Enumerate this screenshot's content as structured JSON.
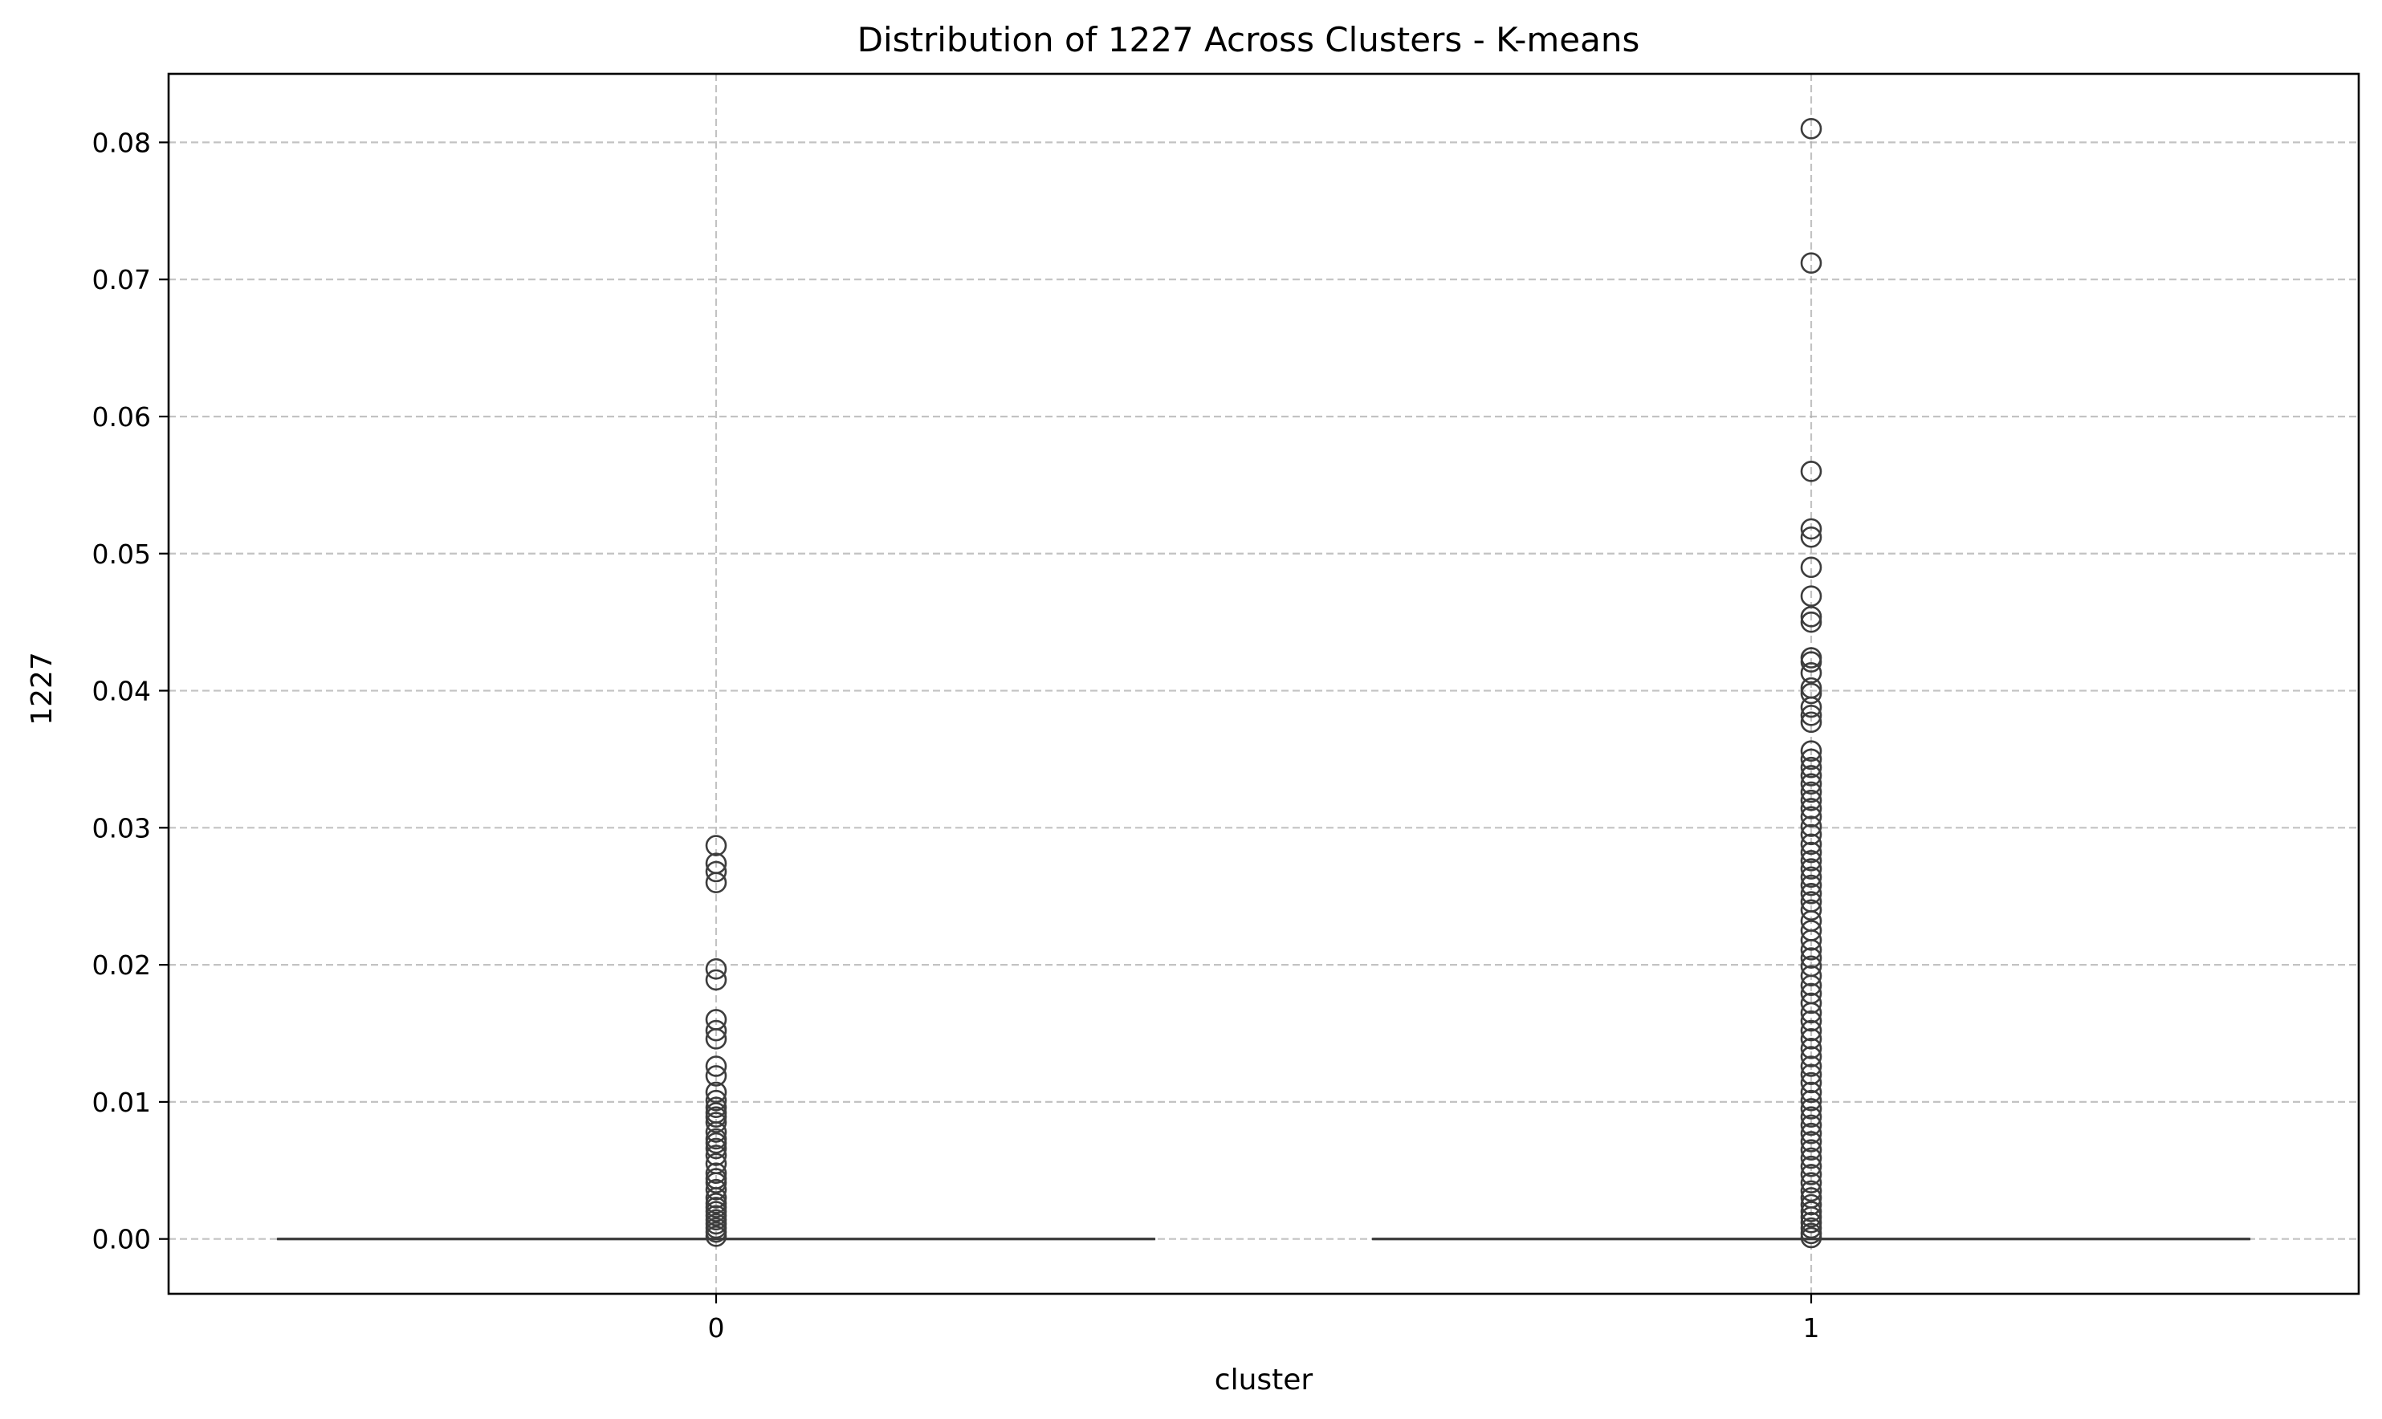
{
  "chart_data": {
    "type": "box",
    "title": "Distribution of 1227 Across Clusters - K-means",
    "xlabel": "cluster",
    "ylabel": "1227",
    "categories": [
      "0",
      "1"
    ],
    "ylim": [
      -0.004,
      0.085
    ],
    "yticks": [
      0.0,
      0.01,
      0.02,
      0.03,
      0.04,
      0.05,
      0.06,
      0.07,
      0.08
    ],
    "ytick_labels": [
      "0.00",
      "0.01",
      "0.02",
      "0.03",
      "0.04",
      "0.05",
      "0.06",
      "0.07",
      "0.08"
    ],
    "grid": true,
    "box_color": "#3d3d3d",
    "boxes": [
      {
        "category": "0",
        "q1": 0.0,
        "median": 0.0,
        "q3": 0.0,
        "whisker_low": 0.0,
        "whisker_high": 0.0,
        "outliers": [
          0.0287,
          0.0274,
          0.0268,
          0.026,
          0.0197,
          0.0189,
          0.016,
          0.0152,
          0.0146,
          0.0126,
          0.0119,
          0.0107,
          0.0101,
          0.0096,
          0.0092,
          0.0089,
          0.0085,
          0.0078,
          0.0073,
          0.007,
          0.0066,
          0.0061,
          0.0055,
          0.0048,
          0.0044,
          0.0041,
          0.0036,
          0.003,
          0.0026,
          0.0023,
          0.002,
          0.0017,
          0.0014,
          0.0011,
          0.0008,
          0.0005,
          0.0002
        ]
      },
      {
        "category": "1",
        "q1": 0.0,
        "median": 0.0,
        "q3": 0.0,
        "whisker_low": 0.0,
        "whisker_high": 0.0,
        "outliers": [
          0.081,
          0.0712,
          0.056,
          0.0518,
          0.0512,
          0.049,
          0.0469,
          0.0454,
          0.045,
          0.0424,
          0.0421,
          0.0413,
          0.0402,
          0.0398,
          0.0388,
          0.0382,
          0.0377,
          0.0356,
          0.035,
          0.0344,
          0.0338,
          0.0332,
          0.0326,
          0.032,
          0.0314,
          0.0308,
          0.0301,
          0.0295,
          0.0288,
          0.0282,
          0.0276,
          0.027,
          0.0264,
          0.0258,
          0.0252,
          0.0246,
          0.024,
          0.0232,
          0.0225,
          0.0218,
          0.0211,
          0.0205,
          0.0199,
          0.0192,
          0.0185,
          0.0179,
          0.0172,
          0.0165,
          0.0159,
          0.0152,
          0.0146,
          0.0139,
          0.0133,
          0.0126,
          0.012,
          0.0114,
          0.0107,
          0.0101,
          0.0095,
          0.0089,
          0.0083,
          0.0077,
          0.0071,
          0.0065,
          0.0059,
          0.0053,
          0.0047,
          0.0041,
          0.0035,
          0.003,
          0.0025,
          0.002,
          0.0016,
          0.0012,
          0.0008,
          0.0004,
          0.0001
        ]
      }
    ]
  }
}
